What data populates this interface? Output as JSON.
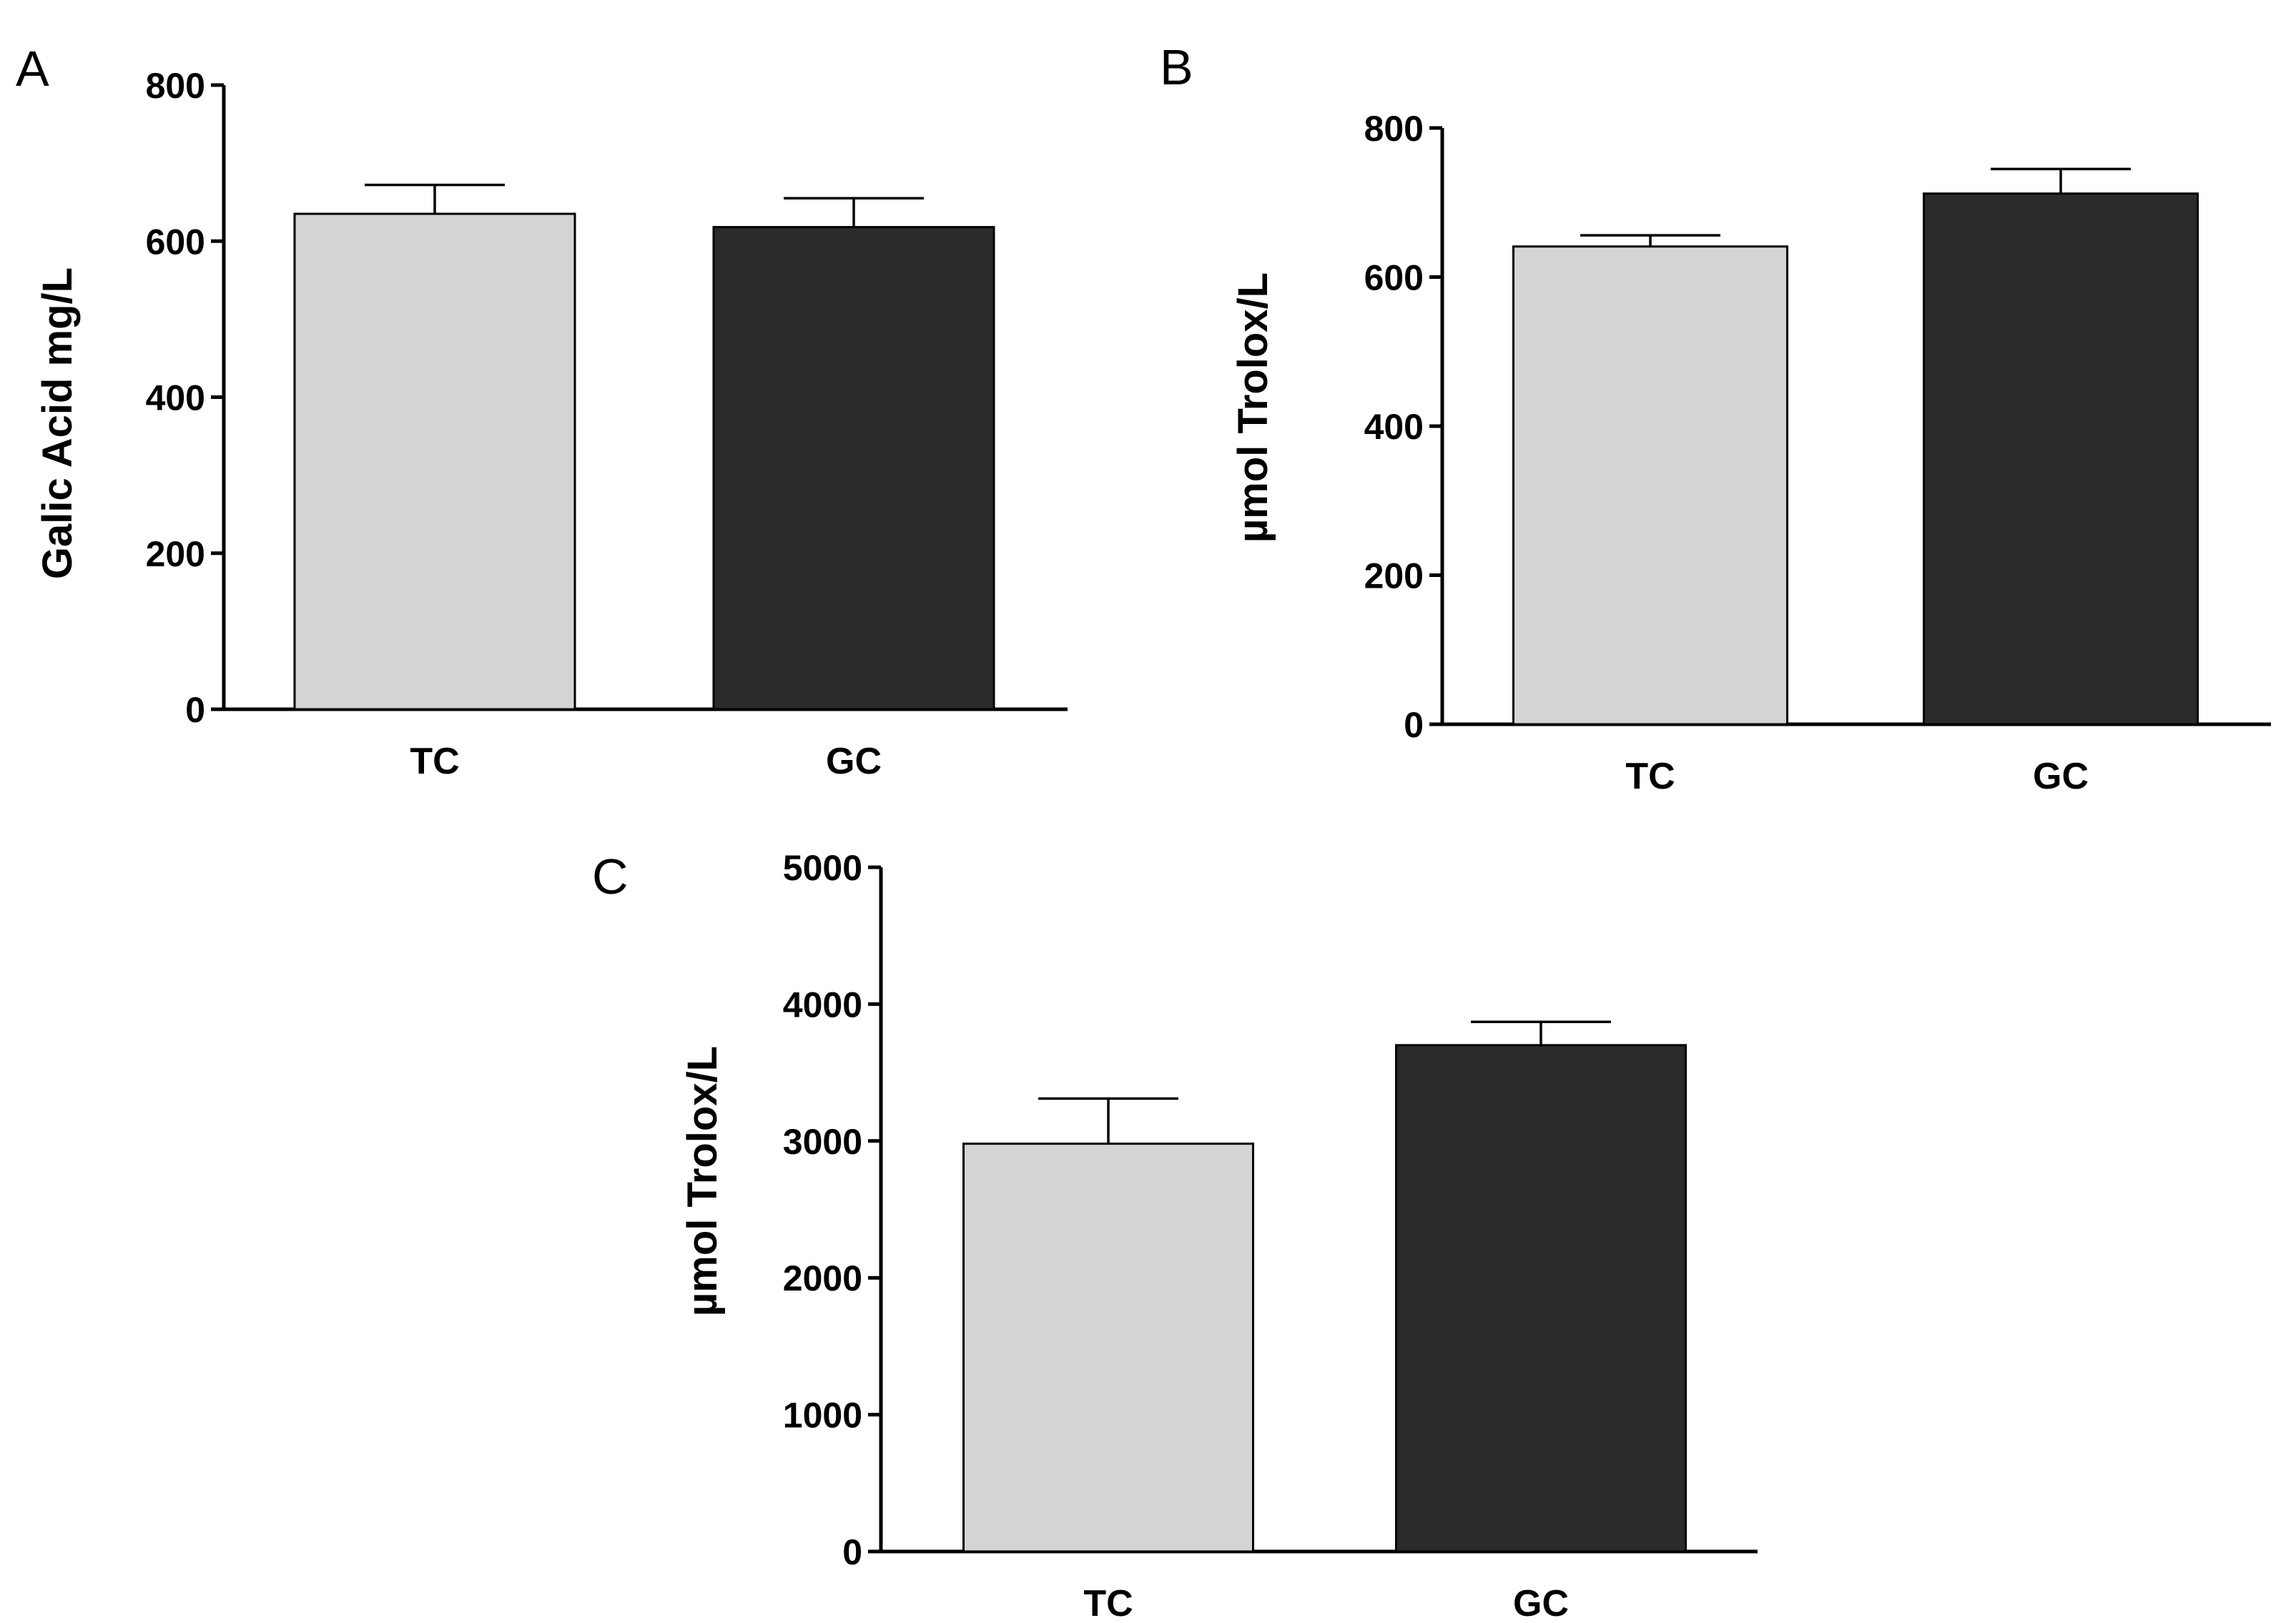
{
  "chart_data": [
    {
      "panel": "A",
      "type": "bar",
      "categories": [
        "TC",
        "GC"
      ],
      "values": [
        635,
        618
      ],
      "errors": [
        37,
        37
      ],
      "colors": [
        "#d4d4d4",
        "#2b2b2b"
      ],
      "ylabel": "Galic Acid mg/L",
      "ylim": [
        0,
        800
      ],
      "yticks": [
        "0",
        "200",
        "400",
        "600",
        "800"
      ],
      "ytick_values": [
        0,
        200,
        400,
        600,
        800
      ]
    },
    {
      "panel": "B",
      "type": "bar",
      "categories": [
        "TC",
        "GC"
      ],
      "values": [
        641,
        712
      ],
      "errors": [
        15,
        33
      ],
      "colors": [
        "#d4d4d4",
        "#2b2b2b"
      ],
      "ylabel": "µmol Trolox/L",
      "ylim": [
        0,
        800
      ],
      "yticks": [
        "0",
        "200",
        "400",
        "600",
        "800"
      ],
      "ytick_values": [
        0,
        200,
        400,
        600,
        800
      ]
    },
    {
      "panel": "C",
      "type": "bar",
      "categories": [
        "TC",
        "GC"
      ],
      "values": [
        2980,
        3700
      ],
      "errors": [
        330,
        170
      ],
      "colors": [
        "#d4d4d4",
        "#2b2b2b"
      ],
      "ylabel": "µmol Trolox/L",
      "ylim": [
        0,
        5000
      ],
      "yticks": [
        "0",
        "1000",
        "2000",
        "3000",
        "4000",
        "5000"
      ],
      "ytick_values": [
        0,
        1000,
        2000,
        3000,
        4000,
        5000
      ]
    }
  ]
}
